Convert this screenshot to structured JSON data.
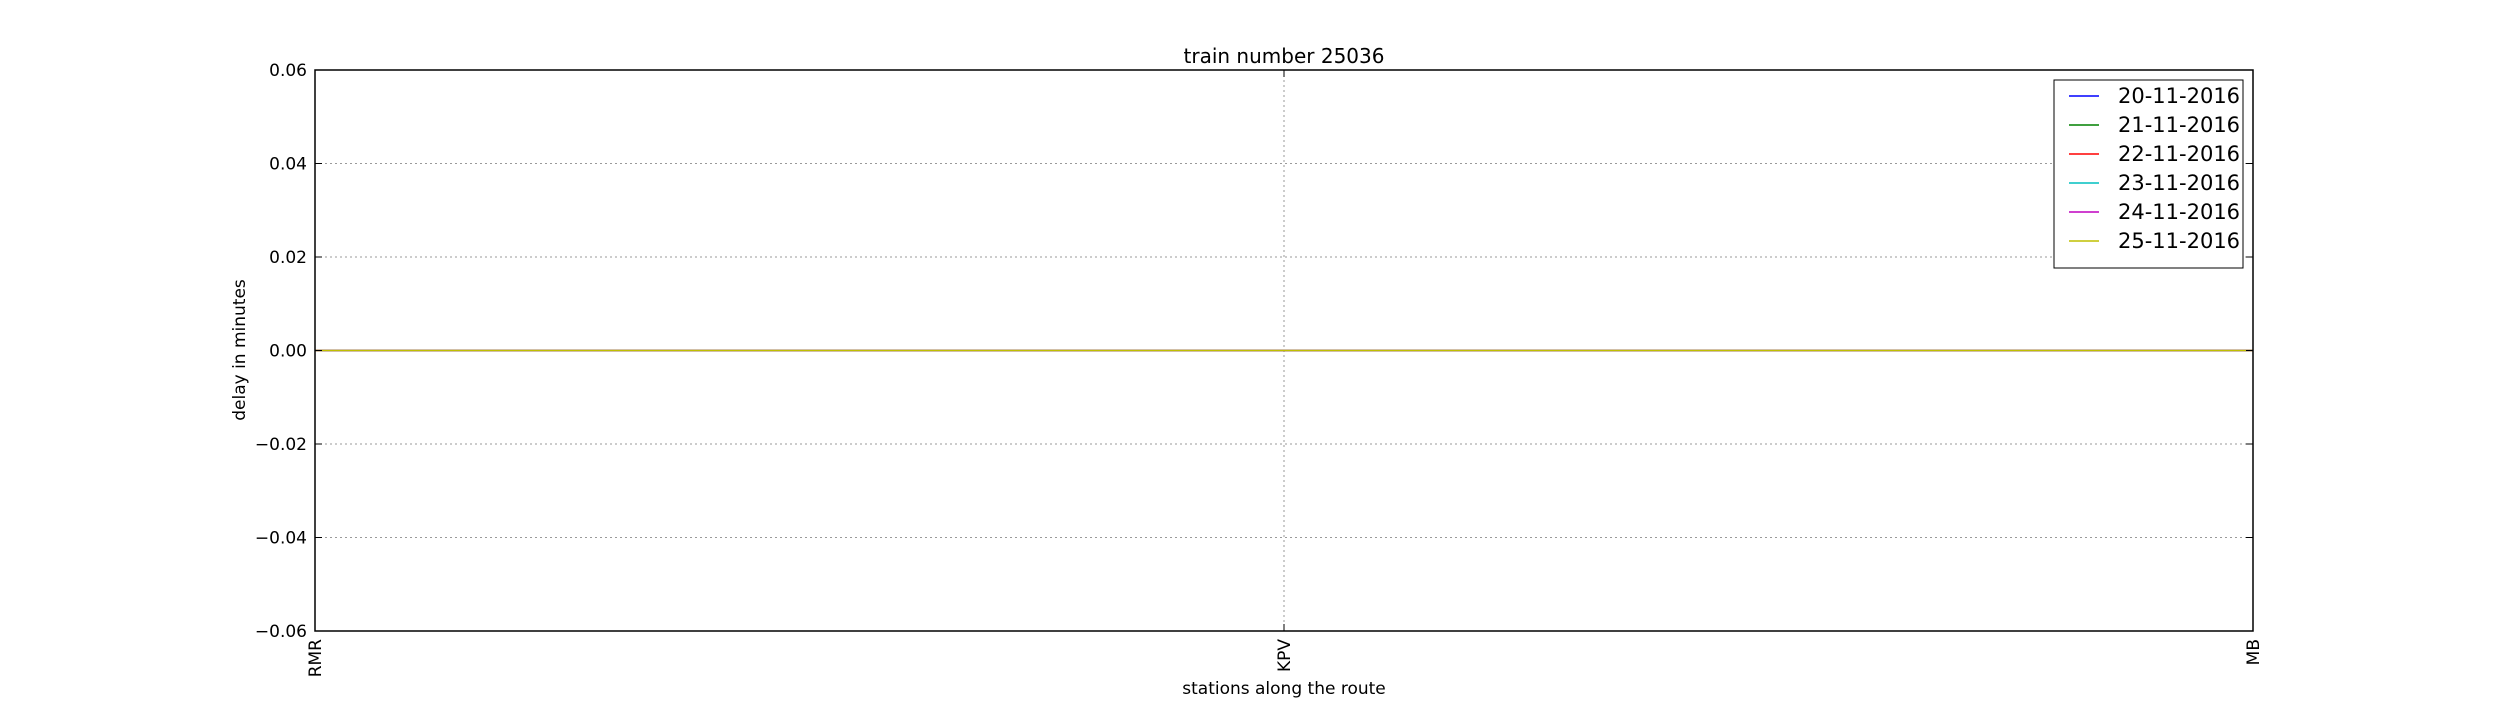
{
  "chart_data": {
    "type": "line",
    "title": "train number 25036",
    "xlabel": "stations along the route",
    "ylabel": "delay in minutes",
    "categories": [
      "RMR",
      "KPV",
      "MB"
    ],
    "ylim": [
      -0.06,
      0.06
    ],
    "yticks": [
      "0.06",
      "0.04",
      "0.02",
      "0.00",
      "−0.02",
      "−0.04",
      "−0.06"
    ],
    "ytick_values": [
      0.06,
      0.04,
      0.02,
      0.0,
      -0.02,
      -0.04,
      -0.06
    ],
    "grid": true,
    "legend_position": "top-right",
    "series": [
      {
        "name": "20-11-2016",
        "color": "#0000ff",
        "values": [
          0,
          0,
          0
        ]
      },
      {
        "name": "21-11-2016",
        "color": "#008000",
        "values": [
          0,
          0,
          0
        ]
      },
      {
        "name": "22-11-2016",
        "color": "#ff0000",
        "values": [
          0,
          0,
          0
        ]
      },
      {
        "name": "23-11-2016",
        "color": "#00bfbf",
        "values": [
          0,
          0,
          0
        ]
      },
      {
        "name": "24-11-2016",
        "color": "#bf00bf",
        "values": [
          0,
          0,
          0
        ]
      },
      {
        "name": "25-11-2016",
        "color": "#bfbf00",
        "values": [
          0,
          0,
          0
        ]
      }
    ]
  }
}
